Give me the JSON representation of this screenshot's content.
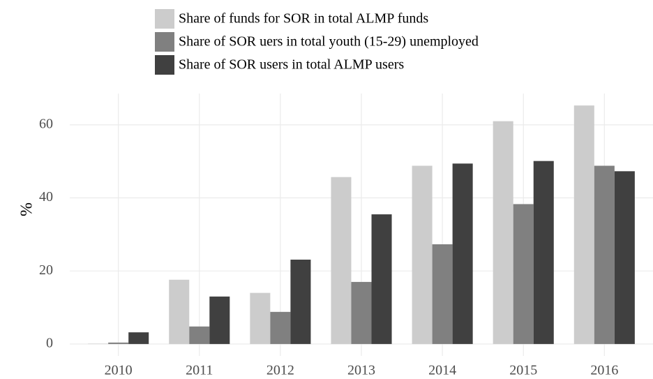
{
  "chart_data": {
    "type": "bar",
    "y_label": "%",
    "categories": [
      "2010",
      "2011",
      "2012",
      "2013",
      "2014",
      "2015",
      "2016"
    ],
    "series": [
      {
        "name": "Share of funds for SOR in total ALMP funds",
        "color": "#cccccc",
        "values": [
          0.1,
          17.6,
          14.0,
          45.7,
          48.8,
          61.0,
          65.3
        ]
      },
      {
        "name": "Share of SOR uers in total youth (15-29) unemployed",
        "color": "#808080",
        "values": [
          0.4,
          4.8,
          8.8,
          17.0,
          27.3,
          38.3,
          48.8
        ]
      },
      {
        "name": "Share of SOR users in total ALMP users",
        "color": "#404040",
        "values": [
          3.2,
          13.0,
          23.1,
          35.5,
          49.4,
          50.1,
          47.3
        ]
      }
    ],
    "ylim": [
      -3.27,
      68.57
    ],
    "yticks": [
      0,
      20,
      40,
      60
    ],
    "grid": true,
    "legend": "top"
  }
}
